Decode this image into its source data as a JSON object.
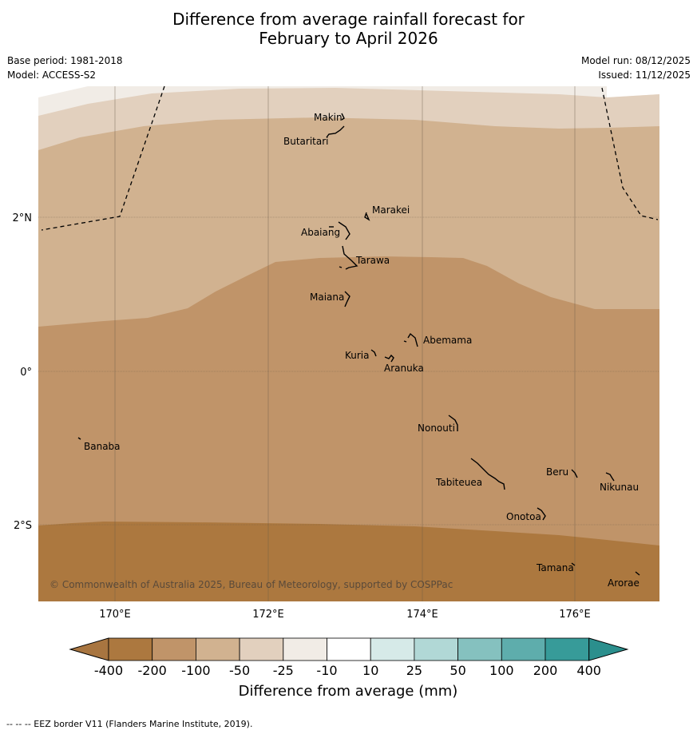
{
  "title_line1": "Difference from average rainfall forecast for",
  "title_line2": "February to April 2026",
  "meta_left": [
    "Base period: 1981-2018",
    "Model: ACCESS-S2"
  ],
  "meta_right": [
    "Model run: 08/12/2025",
    "Issued: 11/12/2025"
  ],
  "map": {
    "lat_labels": [
      "2°N",
      "0°",
      "2°S"
    ],
    "lon_labels": [
      "170°E",
      "172°E",
      "174°E",
      "176°E"
    ],
    "islands": [
      "Makin",
      "Butaritari",
      "Marakei",
      "Abaiang",
      "Tarawa",
      "Maiana",
      "Abemama",
      "Kuria",
      "Aranuka",
      "Nonouti",
      "Banaba",
      "Beru",
      "Nikunau",
      "Tabiteuea",
      "Onotoa",
      "Tamana",
      "Arorae"
    ],
    "copyright": "© Commonwealth of Australia 2025, Bureau of Meteorology, supported by COSPPac"
  },
  "colorbar": {
    "ticks": [
      "-400",
      "-200",
      "-100",
      "-50",
      "-25",
      "-10",
      "10",
      "25",
      "50",
      "100",
      "200",
      "400"
    ],
    "colors": [
      "#a87540",
      "#ac783f",
      "#c09469",
      "#d1b290",
      "#e2d0be",
      "#f1ece6",
      "#ffffff",
      "#d6eae8",
      "#b1d8d6",
      "#85c1bf",
      "#5eadac",
      "#379b99",
      "#2b8f8d"
    ],
    "label": "Difference from average (mm)"
  },
  "footer": "--  --  -- EEZ border V11 (Flanders Marine Institute, 2019)."
}
